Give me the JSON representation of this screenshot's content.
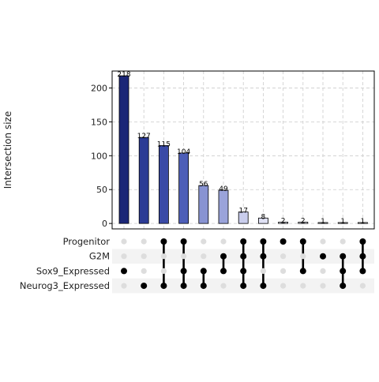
{
  "chart_data": {
    "type": "bar",
    "subtype": "upset",
    "ylabel": "Intersection size",
    "ylim": [
      -8,
      225
    ],
    "yticks": [
      0,
      50,
      100,
      150,
      200
    ],
    "grid": true,
    "sets": [
      "Progenitor",
      "G2M",
      "Sox9_Expressed",
      "Neurog3_Expressed"
    ],
    "intersections": [
      {
        "value": 218,
        "label": "218",
        "members": [
          "Sox9_Expressed"
        ],
        "color": "#1b2677"
      },
      {
        "value": 127,
        "label": "127",
        "members": [
          "Neurog3_Expressed"
        ],
        "color": "#2c3b95"
      },
      {
        "value": 115,
        "label": "115",
        "members": [
          "Progenitor",
          "Neurog3_Expressed"
        ],
        "color": "#3a4aa6"
      },
      {
        "value": 104,
        "label": "104",
        "members": [
          "Progenitor",
          "Sox9_Expressed",
          "Neurog3_Expressed"
        ],
        "color": "#4d5eb8"
      },
      {
        "value": 56,
        "label": "56",
        "members": [
          "Sox9_Expressed",
          "Neurog3_Expressed"
        ],
        "color": "#8893d2"
      },
      {
        "value": 49,
        "label": "49",
        "members": [
          "G2M",
          "Sox9_Expressed"
        ],
        "color": "#9aa3da"
      },
      {
        "value": 17,
        "label": "17",
        "members": [
          "Progenitor",
          "G2M",
          "Sox9_Expressed",
          "Neurog3_Expressed"
        ],
        "color": "#c9cdec"
      },
      {
        "value": 8,
        "label": "8",
        "members": [
          "Progenitor",
          "G2M",
          "Neurog3_Expressed"
        ],
        "color": "#dfe1f4"
      },
      {
        "value": 2,
        "label": "2",
        "members": [
          "Progenitor"
        ],
        "color": "#eceef8"
      },
      {
        "value": 2,
        "label": "2",
        "members": [
          "Progenitor",
          "Sox9_Expressed"
        ],
        "color": "#eff0f9"
      },
      {
        "value": 1,
        "label": "1",
        "members": [
          "G2M"
        ],
        "color": "#f3f4fb"
      },
      {
        "value": 1,
        "label": "1",
        "members": [
          "G2M",
          "Sox9_Expressed",
          "Neurog3_Expressed"
        ],
        "color": "#f6f6fc"
      },
      {
        "value": 1,
        "label": "1",
        "members": [
          "Progenitor",
          "G2M",
          "Sox9_Expressed"
        ],
        "color": "#f9f9fd"
      }
    ],
    "dot_active_color": "#000000",
    "dot_inactive_color": "#dddddd",
    "stripe_color": "#f3f3f3"
  }
}
